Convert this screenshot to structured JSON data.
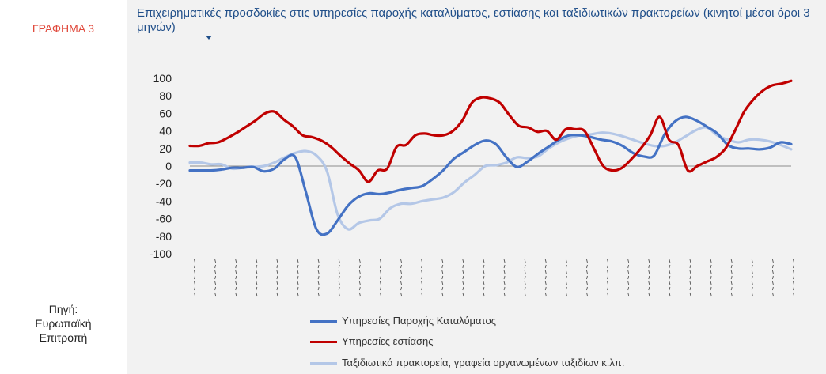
{
  "figure_label": "ΓΡΑΦΗΜΑ 3",
  "source": [
    "Πηγή:",
    "Ευρωπαϊκή",
    "Επιτροπή"
  ],
  "chart_data": {
    "type": "line",
    "title": "Επιχειρηματικές προσδοκίες στις υπηρεσίες παροχής καταλύματος, εστίασης και ταξιδιωτικών πρακτορείων (κινητοί μέσοι όροι 3 μηνών)",
    "ylim": [
      -100,
      100
    ],
    "yticks": [
      100,
      80,
      60,
      40,
      20,
      0,
      -20,
      -40,
      -60,
      -80,
      -100
    ],
    "xtick_count": 30,
    "series": [
      {
        "name": "Υπηρεσίες Παροχής Καταλύματος",
        "color": "#4472c4",
        "values": [
          -5,
          -5,
          -5,
          -4,
          -2,
          -2,
          -1,
          -6,
          -3,
          8,
          10,
          -30,
          -72,
          -77,
          -62,
          -45,
          -35,
          -31,
          -32,
          -30,
          -27,
          -25,
          -23,
          -15,
          -5,
          8,
          16,
          24,
          29,
          25,
          10,
          -1,
          5,
          14,
          22,
          30,
          35,
          35,
          33,
          30,
          28,
          23,
          15,
          11,
          12,
          36,
          51,
          56,
          52,
          45,
          37,
          24,
          20,
          20,
          19,
          21,
          27,
          25
        ]
      },
      {
        "name": "Υπηρεσίες εστίασης",
        "color": "#c00000",
        "values": [
          23,
          23,
          26,
          27,
          32,
          38,
          45,
          52,
          60,
          62,
          53,
          45,
          35,
          33,
          29,
          22,
          12,
          3,
          -5,
          -18,
          -5,
          -3,
          22,
          24,
          35,
          37,
          35,
          35,
          40,
          52,
          72,
          78,
          77,
          72,
          58,
          46,
          44,
          39,
          40,
          30,
          42,
          42,
          40,
          20,
          0,
          -5,
          -2,
          8,
          20,
          35,
          56,
          30,
          24,
          -5,
          0,
          5,
          10,
          20,
          40,
          62,
          76,
          86,
          92,
          94,
          97
        ]
      },
      {
        "name": "Ταξιδιωτικά πρακτορεία, γραφεία οργανωμένων ταξιδίων κ.λπ.",
        "color": "#b4c7e7",
        "values": [
          4,
          4,
          2,
          2,
          -3,
          -2,
          -1,
          0,
          4,
          10,
          15,
          17,
          12,
          -6,
          -55,
          -72,
          -65,
          -62,
          -60,
          -48,
          -43,
          -43,
          -40,
          -38,
          -36,
          -30,
          -19,
          -10,
          0,
          1,
          4,
          10,
          9,
          11,
          20,
          27,
          32,
          35,
          36,
          38,
          37,
          34,
          30,
          26,
          23,
          23,
          27,
          34,
          41,
          44,
          35,
          30,
          27,
          30,
          30,
          28,
          24,
          19
        ]
      }
    ]
  }
}
